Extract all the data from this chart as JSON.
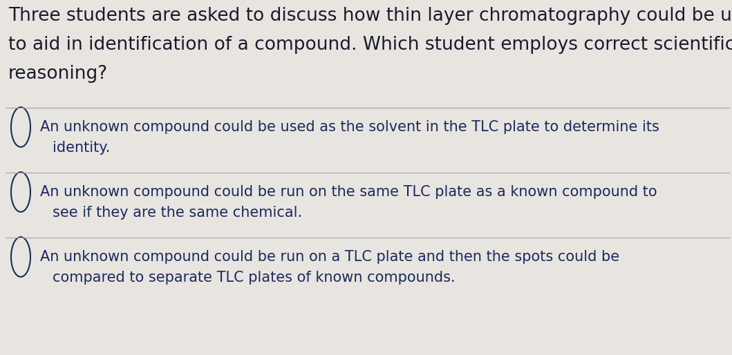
{
  "background_color": "#e8e5e0",
  "title_text_lines": [
    "Three students are asked to discuss how thin layer chromatography could be used",
    "to aid in identification of a compound. Which student employs correct scientific",
    "reasoning?"
  ],
  "title_color": "#1a1a2e",
  "title_fontsize": 19,
  "options": [
    {
      "line1": "An unknown compound could be used as the solvent in the TLC plate to determine its",
      "line2": "identity.",
      "fontsize": 15,
      "color": "#1a2a5e"
    },
    {
      "line1": "An unknown compound could be run on the same TLC plate as a known compound to",
      "line2": "see if they are the same chemical.",
      "fontsize": 15,
      "color": "#1a2a5e"
    },
    {
      "line1": "An unknown compound could be run on a TLC plate and then the spots could be",
      "line2": "compared to separate TLC plates of known compounds.",
      "fontsize": 15,
      "color": "#1a2a5e"
    }
  ],
  "circle_color": "#1a2a5e",
  "divider_color": "#b0aaa0",
  "figsize": [
    10.59,
    5.14
  ],
  "dpi": 100
}
